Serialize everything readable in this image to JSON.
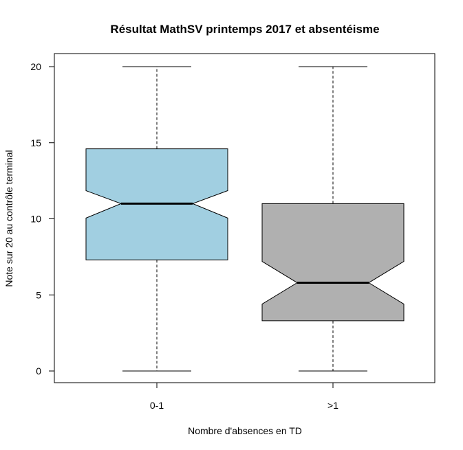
{
  "chart_data": {
    "type": "boxplot",
    "title": "Résultat MathSV printemps 2017 et absentéisme",
    "xlabel": "Nombre d'absences en TD",
    "ylabel": "Note sur 20 au contrôle terminal",
    "ylim": [
      0,
      20
    ],
    "yticks": [
      0,
      5,
      10,
      15,
      20
    ],
    "notched": true,
    "grid": false,
    "categories": [
      "0-1",
      ">1"
    ],
    "boxes": [
      {
        "category": "0-1",
        "min": 0,
        "q1": 7.3,
        "median": 11.0,
        "q3": 14.6,
        "max": 20,
        "notch_low": 10.05,
        "notch_high": 11.85,
        "color": "#a1cfe1"
      },
      {
        "category": ">1",
        "min": 0,
        "q1": 3.3,
        "median": 5.8,
        "q3": 11.0,
        "max": 20,
        "notch_low": 4.4,
        "notch_high": 7.2,
        "color": "#b0b0b0"
      }
    ]
  }
}
